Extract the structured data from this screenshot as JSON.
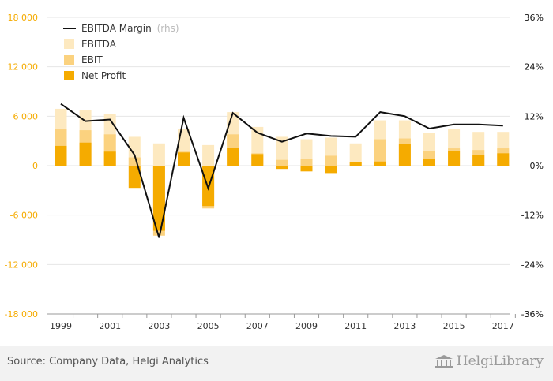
{
  "chart_data": {
    "type": "bar",
    "stacking": "overlapping columns with line on secondary axis",
    "categories": [
      "1999",
      "2000",
      "2001",
      "2002",
      "2003",
      "2004",
      "2005",
      "2006",
      "2007",
      "2008",
      "2009",
      "2010",
      "2011",
      "2012",
      "2013",
      "2014",
      "2015",
      "2016",
      "2017"
    ],
    "xtick_labels": [
      "1999",
      "2001",
      "2003",
      "2005",
      "2007",
      "2009",
      "2011",
      "2013",
      "2015",
      "2017"
    ],
    "series": [
      {
        "name": "EBITDA",
        "axis": "left",
        "color": "#fde9c0",
        "values": [
          6900,
          6700,
          6300,
          3500,
          2700,
          4500,
          2500,
          6500,
          4700,
          3500,
          3200,
          3400,
          2700,
          5500,
          5500,
          4000,
          4400,
          4100,
          4100
        ]
      },
      {
        "name": "EBIT",
        "axis": "left",
        "color": "#fbd27f",
        "values": [
          4400,
          4300,
          3800,
          1000,
          -8500,
          1700,
          -5200,
          3800,
          1500,
          700,
          800,
          1200,
          400,
          3200,
          3300,
          1800,
          2100,
          1900,
          2100
        ]
      },
      {
        "name": "Net Profit",
        "axis": "left",
        "color": "#f5ab00",
        "values": [
          2400,
          2800,
          1700,
          -2700,
          -7900,
          1600,
          -4900,
          2200,
          1400,
          -400,
          -700,
          -900,
          400,
          500,
          2600,
          800,
          1800,
          1300,
          1500
        ]
      },
      {
        "name": "EBITDA Margin",
        "axis": "right",
        "type": "line",
        "color": "#111111",
        "values": [
          15.0,
          10.8,
          11.2,
          2.6,
          -17.5,
          11.6,
          -5.5,
          12.8,
          8.0,
          5.8,
          7.8,
          7.2,
          7.0,
          13.0,
          12.0,
          9.0,
          10.0,
          10.0,
          9.7
        ]
      }
    ],
    "legend": [
      "EBITDA Margin",
      "EBITDA",
      "EBIT",
      "Net Profit"
    ],
    "legend_suffix": "(rhs)",
    "legend_position": "top-left",
    "ylim": [
      -18000,
      18000
    ],
    "yticks": [
      "18 000",
      "12 000",
      "6 000",
      "0",
      "-6 000",
      "-12 000",
      "-18 000"
    ],
    "y2lim": [
      -36,
      36
    ],
    "y2ticks": [
      "36%",
      "24%",
      "12%",
      "0%",
      "-12%",
      "-24%",
      "-36%"
    ],
    "grid": true,
    "colors": {
      "left_axis": "#f5ab00",
      "right_axis": "#111111",
      "grid": "#e6e6e6"
    }
  },
  "footer": {
    "source": "Source: Company Data, Helgi Analytics",
    "logo": "HelgiLibrary"
  }
}
